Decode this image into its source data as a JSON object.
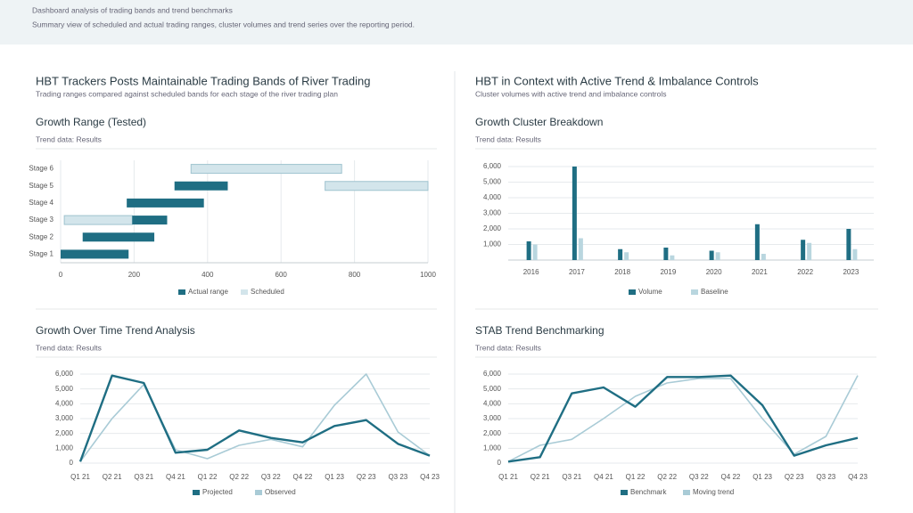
{
  "header": {
    "title": "Dashboard analysis of trading bands and trend benchmarks",
    "subtitle": "Summary view of scheduled and actual trading ranges, cluster volumes and trend series over the reporting period."
  },
  "panels": [
    {
      "title": "HBT Trackers Posts Maintainable Trading Bands of River Trading",
      "subtitle": "Trading ranges compared against scheduled bands for each stage of the river trading plan"
    },
    {
      "title": "HBT in Context with Active Trend & Imbalance Controls",
      "subtitle": "Cluster volumes with active trend and imbalance controls"
    }
  ],
  "chart_data": [
    {
      "type": "range_bar",
      "title": "Growth Range (Tested)",
      "subtitle": "Trend data: Results",
      "categories": [
        "Stage 6",
        "Stage 5",
        "Stage 4",
        "Stage 3",
        "Stage 2",
        "Stage 1"
      ],
      "series": [
        {
          "name": "Actual range",
          "color": "#1f6e83",
          "starts": [
            null,
            310,
            180,
            195,
            60,
            0
          ],
          "ends": [
            null,
            455,
            390,
            290,
            255,
            185
          ]
        },
        {
          "name": "Scheduled",
          "color": "#d3e5eb",
          "starts": [
            355,
            720,
            null,
            10,
            null,
            null
          ],
          "ends": [
            765,
            1000,
            null,
            195,
            null,
            null
          ]
        }
      ],
      "xlim": [
        0,
        1000
      ],
      "xticks": [
        0,
        200,
        400,
        600,
        800,
        1000
      ],
      "grid": true
    },
    {
      "type": "grouped_bar",
      "title": "Growth Cluster Breakdown",
      "subtitle": "Trend data: Results",
      "categories": [
        "2016",
        "2017",
        "2018",
        "2019",
        "2020",
        "2021",
        "2022",
        "2023"
      ],
      "series": [
        {
          "name": "Volume",
          "color": "#1f6e83",
          "values": [
            1200,
            6000,
            700,
            800,
            600,
            2300,
            1300,
            2000
          ]
        },
        {
          "name": "Baseline",
          "color": "#b9d6df",
          "values": [
            1000,
            1400,
            500,
            300,
            500,
            400,
            1100,
            700
          ]
        }
      ],
      "ylim": [
        0,
        6000
      ],
      "yticks": [
        {
          "value": 1000,
          "label": "1,000"
        },
        {
          "value": 2000,
          "label": "2,000"
        },
        {
          "value": 3000,
          "label": "3,000"
        },
        {
          "value": 4000,
          "label": "4,000"
        },
        {
          "value": 5000,
          "label": "5,000"
        },
        {
          "value": 6000,
          "label": "6,000"
        }
      ],
      "grid": true
    },
    {
      "type": "line",
      "title": "Growth Over Time Trend Analysis",
      "subtitle": "Trend data: Results",
      "categories": [
        "Q1 21",
        "Q2 21",
        "Q3 21",
        "Q4 21",
        "Q1 22",
        "Q2 22",
        "Q3 22",
        "Q4 22",
        "Q1 23",
        "Q2 23",
        "Q3 23",
        "Q4 23"
      ],
      "series": [
        {
          "name": "Projected",
          "color": "#1f6e83",
          "values": [
            100,
            5900,
            5400,
            700,
            900,
            2200,
            1700,
            1400,
            2500,
            2900,
            1300,
            500
          ]
        },
        {
          "name": "Observed",
          "color": "#a9cbd6",
          "values": [
            100,
            3000,
            5300,
            900,
            300,
            1200,
            1600,
            1100,
            3900,
            6000,
            2100,
            500
          ]
        }
      ],
      "ylim": [
        0,
        6000
      ],
      "yticks": [
        0,
        {
          "value": 1000,
          "label": "1,000"
        },
        {
          "value": 2000,
          "label": "2,000"
        },
        {
          "value": 3000,
          "label": "3,000"
        },
        {
          "value": 4000,
          "label": "4,000"
        },
        {
          "value": 5000,
          "label": "5,000"
        },
        {
          "value": 6000,
          "label": "6,000"
        }
      ],
      "grid": true
    },
    {
      "type": "line",
      "title": "STAB Trend Benchmarking",
      "subtitle": "Trend data: Results",
      "categories": [
        "Q1 21",
        "Q2 21",
        "Q3 21",
        "Q4 21",
        "Q1 22",
        "Q2 22",
        "Q3 22",
        "Q4 22",
        "Q1 23",
        "Q2 23",
        "Q3 23",
        "Q4 23"
      ],
      "series": [
        {
          "name": "Benchmark",
          "color": "#1f6e83",
          "values": [
            100,
            400,
            4700,
            5100,
            3800,
            5800,
            5800,
            5900,
            3900,
            500,
            1200,
            1700
          ]
        },
        {
          "name": "Moving trend",
          "color": "#a9cbd6",
          "values": [
            100,
            1200,
            1600,
            3000,
            4500,
            5400,
            5700,
            5700,
            3000,
            600,
            1800,
            5900
          ]
        }
      ],
      "ylim": [
        0,
        6000
      ],
      "yticks": [
        0,
        {
          "value": 1000,
          "label": "1,000"
        },
        {
          "value": 2000,
          "label": "2,000"
        },
        {
          "value": 3000,
          "label": "3,000"
        },
        {
          "value": 4000,
          "label": "4,000"
        },
        {
          "value": 5000,
          "label": "5,000"
        },
        {
          "value": 6000,
          "label": "6,000"
        }
      ],
      "grid": true
    }
  ]
}
